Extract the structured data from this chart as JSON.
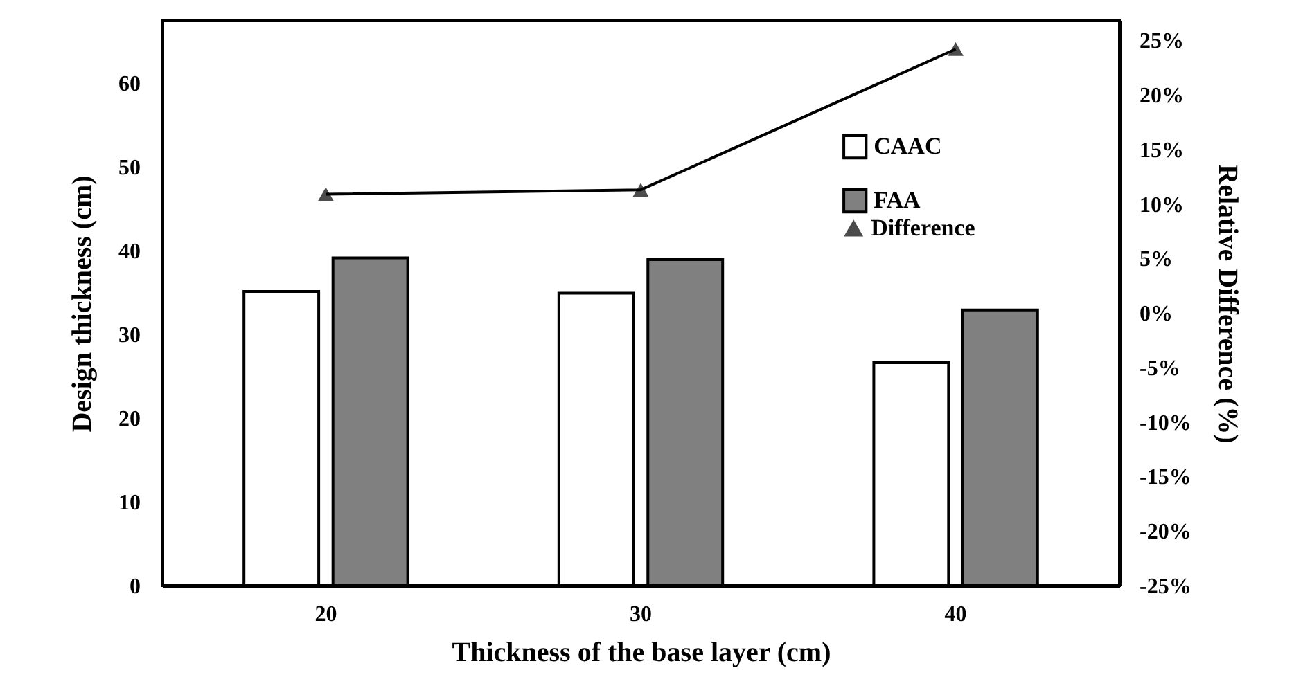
{
  "chart_data": {
    "type": "bar",
    "xlabel": "Thickness of the base layer (cm)",
    "ylabel": "Design thickness (cm)",
    "y2label": "Relative Difference (%)",
    "categories": [
      "20",
      "30",
      "40"
    ],
    "series": [
      {
        "name": "CAAC",
        "color": "#ffffff",
        "values": [
          35.1,
          34.9,
          26.6
        ]
      },
      {
        "name": "FAA",
        "color": "#808080",
        "values": [
          39.1,
          38.9,
          32.9
        ]
      },
      {
        "name": "Difference",
        "type": "line",
        "axis": "y2",
        "color": "#000000",
        "values": [
          10.9,
          11.3,
          24.2
        ]
      }
    ],
    "ylim": [
      0,
      67.4
    ],
    "yticks": [
      0,
      10,
      20,
      30,
      40,
      50,
      60
    ],
    "y2lim": [
      -25,
      26.8
    ],
    "y2ticks": [
      {
        "value": -25,
        "label": "-25%"
      },
      {
        "value": -20,
        "label": "-20%"
      },
      {
        "value": -15,
        "label": "-15%"
      },
      {
        "value": -10,
        "label": "-10%"
      },
      {
        "value": -5,
        "label": "-5%"
      },
      {
        "value": 0,
        "label": "0%"
      },
      {
        "value": 5,
        "label": "5%"
      },
      {
        "value": 10,
        "label": "10%"
      },
      {
        "value": 15,
        "label": "15%"
      },
      {
        "value": 20,
        "label": "20%"
      },
      {
        "value": 25,
        "label": "25%"
      }
    ],
    "marker": "triangle",
    "legend": "top right"
  }
}
